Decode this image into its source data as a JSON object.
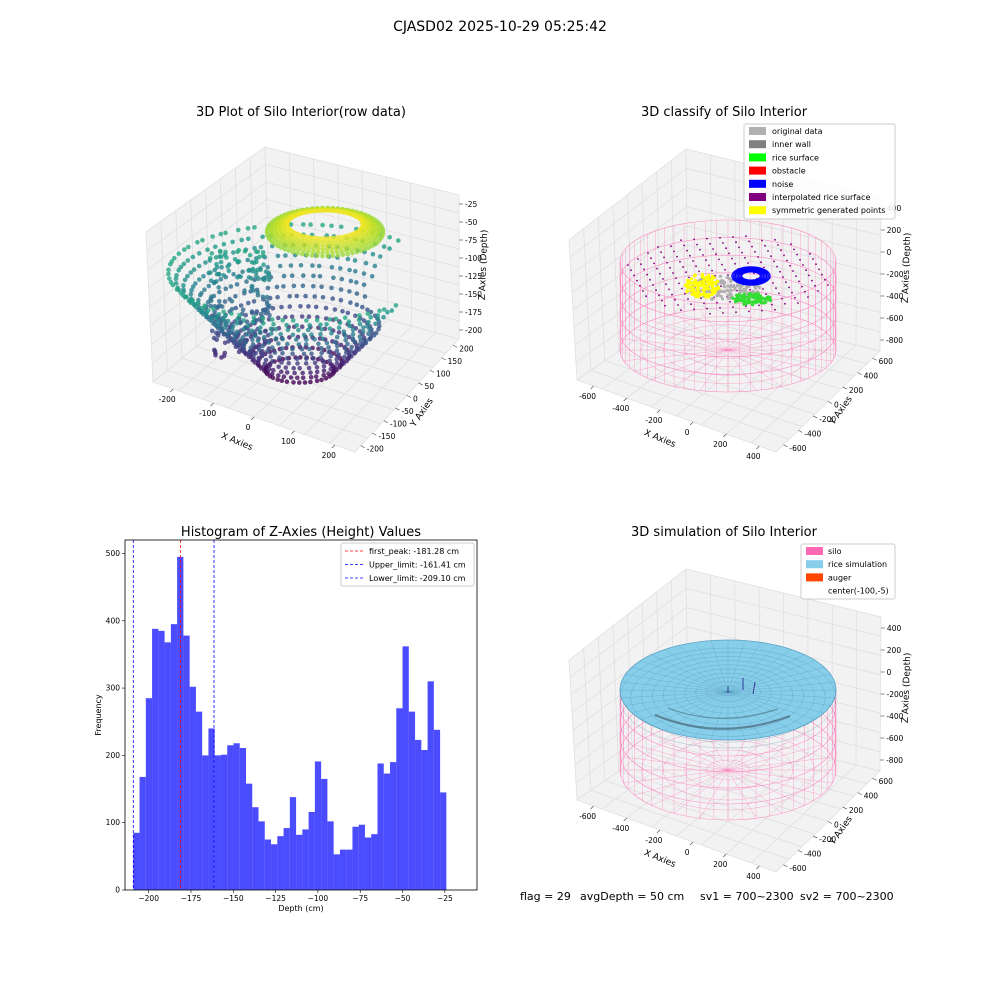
{
  "suptitle": "CJASD02 2025-10-29 05:25:42",
  "chart_data": [
    {
      "type": "scatter3d",
      "title": "3D Plot of Silo Interior(row data)",
      "xlabel": "X Axies",
      "ylabel": "Y Axies",
      "zlabel": "Z Axies (Depth)",
      "x_ticks": [
        "-200",
        "-100",
        "0",
        "100",
        "200"
      ],
      "y_ticks": [
        "200",
        "150",
        "100",
        "50",
        "0",
        "-50",
        "-100",
        "-150",
        "-200"
      ],
      "z_ticks": [
        "-25",
        "-50",
        "-75",
        "-100",
        "-125",
        "-150",
        "-175",
        "-200"
      ],
      "colormap": "viridis",
      "grid": true
    },
    {
      "type": "scatter3d",
      "title": "3D classify of Silo Interior",
      "xlabel": "X Axies",
      "ylabel": "Y Axies",
      "zlabel": "Z Axies (Depth)",
      "x_ticks": [
        "-600",
        "-400",
        "-200",
        "0",
        "200",
        "400"
      ],
      "y_ticks": [
        "600",
        "400",
        "200",
        "0",
        "-200",
        "-400",
        "-600"
      ],
      "z_ticks": [
        "400",
        "200",
        "0",
        "-200",
        "-400",
        "-600",
        "-800"
      ],
      "legend_position": "top-right",
      "legend": [
        {
          "label": "original data",
          "color": "#b0b0b0"
        },
        {
          "label": "inner wall",
          "color": "#808080"
        },
        {
          "label": "rice surface",
          "color": "#00ff00"
        },
        {
          "label": "obstacle",
          "color": "#ff0000"
        },
        {
          "label": "noise",
          "color": "#0000ff"
        },
        {
          "label": "interpolated rice surface",
          "color": "#800080"
        },
        {
          "label": "symmetric generated points",
          "color": "#ffff00"
        }
      ],
      "grid": true
    },
    {
      "type": "bar",
      "title": "Histogram of Z-Axies (Height) Values",
      "xlabel": "Depth (cm)",
      "ylabel": "Frequency",
      "xlim": [
        -214,
        -6
      ],
      "ylim": [
        0,
        520
      ],
      "x_ticks": [
        -200,
        -175,
        -150,
        -125,
        -100,
        -75,
        -50,
        -25
      ],
      "y_ticks": [
        0,
        100,
        200,
        300,
        400,
        500
      ],
      "bin_start": -209.1,
      "bin_width": 3.7,
      "values": [
        85,
        168,
        285,
        388,
        385,
        368,
        395,
        495,
        378,
        302,
        265,
        200,
        240,
        200,
        201,
        215,
        218,
        211,
        158,
        123,
        102,
        75,
        68,
        80,
        92,
        138,
        82,
        90,
        116,
        191,
        165,
        102,
        53,
        60,
        60,
        94,
        97,
        78,
        83,
        188,
        173,
        190,
        270,
        362,
        265,
        223,
        208,
        310,
        238,
        145
      ],
      "bar_color": "#0000ff",
      "lines": [
        {
          "label": "first_peak: -181.28 cm",
          "x": -181.28,
          "color": "#ff0000"
        },
        {
          "label": "Upper_limit: -161.41 cm",
          "x": -161.41,
          "color": "#0000ff"
        },
        {
          "label": "Lower_limit: -209.10 cm",
          "x": -209.1,
          "color": "#0000ff"
        }
      ],
      "legend_position": "top-right",
      "grid": false
    },
    {
      "type": "surface3d",
      "title": "3D simulation of Silo Interior",
      "xlabel": "X Axies",
      "ylabel": "Y Axies",
      "zlabel": "Z Axies (Depth)",
      "x_ticks": [
        "-600",
        "-400",
        "-200",
        "0",
        "200",
        "400"
      ],
      "y_ticks": [
        "600",
        "400",
        "200",
        "0",
        "-200",
        "-400",
        "-600"
      ],
      "z_ticks": [
        "400",
        "200",
        "0",
        "-200",
        "-400",
        "-600",
        "-800"
      ],
      "legend_position": "top-right",
      "legend": [
        {
          "label": "silo",
          "color": "#ff69b4"
        },
        {
          "label": "rice simulation",
          "color": "#87ceeb"
        },
        {
          "label": "auger",
          "color": "#ff4500"
        },
        {
          "label": "center(-100,-5)",
          "color": "none"
        }
      ],
      "grid": true
    }
  ],
  "footer": {
    "flag": "flag = 29",
    "avg_depth": "avgDepth = 50 cm",
    "sv1": "sv1 = 700~2300",
    "sv2": "sv2 = 700~2300"
  }
}
